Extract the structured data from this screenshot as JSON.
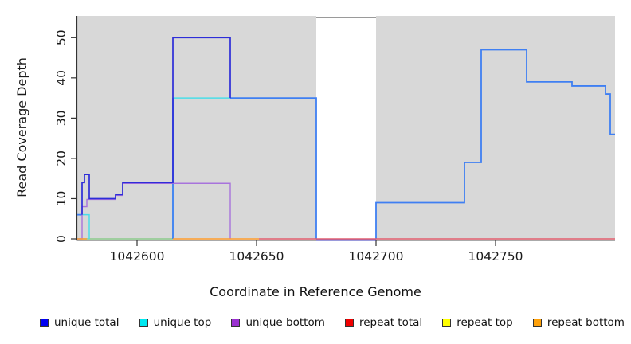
{
  "chart_data": {
    "type": "line",
    "title": "",
    "xlabel": "Coordinate in Reference Genome",
    "ylabel": "Read Coverage Depth",
    "xlim": [
      1042575,
      1042800
    ],
    "ylim": [
      0,
      55.4
    ],
    "grid": false,
    "x_ticks": [
      1042600,
      1042650,
      1042700,
      1042750
    ],
    "y_ticks": [
      0,
      10,
      20,
      30,
      40,
      50
    ],
    "background_color": "#ffffff",
    "shaded_regions": [
      {
        "name": "mapped-region-left",
        "x0": 1042575,
        "x1": 1042675,
        "color": "#d8d8d8"
      },
      {
        "name": "mapped-region-right",
        "x0": 1042700,
        "x1": 1042800,
        "color": "#d8d8d8"
      }
    ],
    "gap_top_line": {
      "x0": 1042675,
      "x1": 1042700,
      "value": 55,
      "color": "#9a9a9a"
    },
    "series": [
      {
        "name": "zero-baseline-left",
        "color": "#8ccb8c",
        "width": 1.4,
        "segments": [
          [
            [
              1042575,
              0
            ],
            [
              1042615,
              0
            ]
          ]
        ]
      },
      {
        "name": "unique-top",
        "color": "#4adde8",
        "width": 1.5,
        "segments": [
          [
            [
              1042575,
              6
            ],
            [
              1042580,
              6
            ],
            [
              1042580,
              0
            ]
          ],
          [
            [
              1042615,
              0
            ],
            [
              1042615,
              35
            ],
            [
              1042639,
              35
            ]
          ]
        ]
      },
      {
        "name": "total-coverage",
        "color": "#3f7ff2",
        "width": 1.8,
        "segments": [
          [
            [
              1042575,
              6
            ],
            [
              1042577,
              6
            ]
          ],
          [
            [
              1042615,
              0
            ],
            [
              1042615,
              35
            ]
          ],
          [
            [
              1042639,
              35
            ],
            [
              1042675,
              35
            ],
            [
              1042675,
              0
            ]
          ],
          [
            [
              1042700,
              0
            ],
            [
              1042700,
              9
            ],
            [
              1042737,
              9
            ],
            [
              1042737,
              19
            ],
            [
              1042744,
              19
            ],
            [
              1042744,
              47
            ],
            [
              1042763,
              47
            ],
            [
              1042763,
              39
            ],
            [
              1042782,
              39
            ],
            [
              1042782,
              38
            ],
            [
              1042796,
              38
            ],
            [
              1042796,
              36
            ],
            [
              1042798,
              36
            ],
            [
              1042798,
              26
            ],
            [
              1042800,
              26
            ]
          ]
        ]
      },
      {
        "name": "unique-bottom",
        "color": "#a873dc",
        "width": 1.4,
        "segments": [
          [
            [
              1042575,
              0
            ],
            [
              1042577,
              0
            ],
            [
              1042577,
              8
            ],
            [
              1042579,
              8
            ],
            [
              1042579,
              9.8
            ],
            [
              1042591,
              9.8
            ],
            [
              1042591,
              10.8
            ],
            [
              1042594,
              10.8
            ],
            [
              1042594,
              13.8
            ],
            [
              1042639,
              13.8
            ],
            [
              1042639,
              0
            ]
          ]
        ]
      },
      {
        "name": "unique-total",
        "color": "#2d2dd8",
        "width": 1.7,
        "segments": [
          [
            [
              1042577,
              6
            ],
            [
              1042577,
              14
            ],
            [
              1042578,
              14
            ],
            [
              1042578,
              16
            ],
            [
              1042580,
              16
            ],
            [
              1042580,
              10
            ],
            [
              1042591,
              10
            ],
            [
              1042591,
              11
            ],
            [
              1042594,
              11
            ],
            [
              1042594,
              14
            ],
            [
              1042615,
              14
            ],
            [
              1042615,
              50
            ],
            [
              1042639,
              50
            ],
            [
              1042639,
              35
            ]
          ],
          [
            [
              1042675,
              -0.3
            ],
            [
              1042700,
              -0.3
            ]
          ]
        ]
      },
      {
        "name": "repeat-total",
        "color": "#e25f6f",
        "width": 1.4,
        "segments": [
          [
            [
              1042651,
              0
            ],
            [
              1042800,
              0
            ]
          ]
        ]
      },
      {
        "name": "repeat-bottom",
        "color": "#ff9d2e",
        "width": 1.5,
        "segments": [
          [
            [
              1042575,
              0
            ],
            [
              1042579,
              0
            ]
          ],
          [
            [
              1042615,
              0
            ],
            [
              1042651,
              0
            ]
          ]
        ]
      }
    ],
    "legend_position": "bottom"
  },
  "legend": {
    "items": [
      {
        "label": "unique total",
        "color": "#0000f0"
      },
      {
        "label": "unique top",
        "color": "#00e8f0"
      },
      {
        "label": "unique bottom",
        "color": "#9a30d0"
      },
      {
        "label": "repeat total",
        "color": "#f00000"
      },
      {
        "label": "repeat top",
        "color": "#ffff00"
      },
      {
        "label": "repeat bottom",
        "color": "#ffa10a"
      }
    ]
  }
}
